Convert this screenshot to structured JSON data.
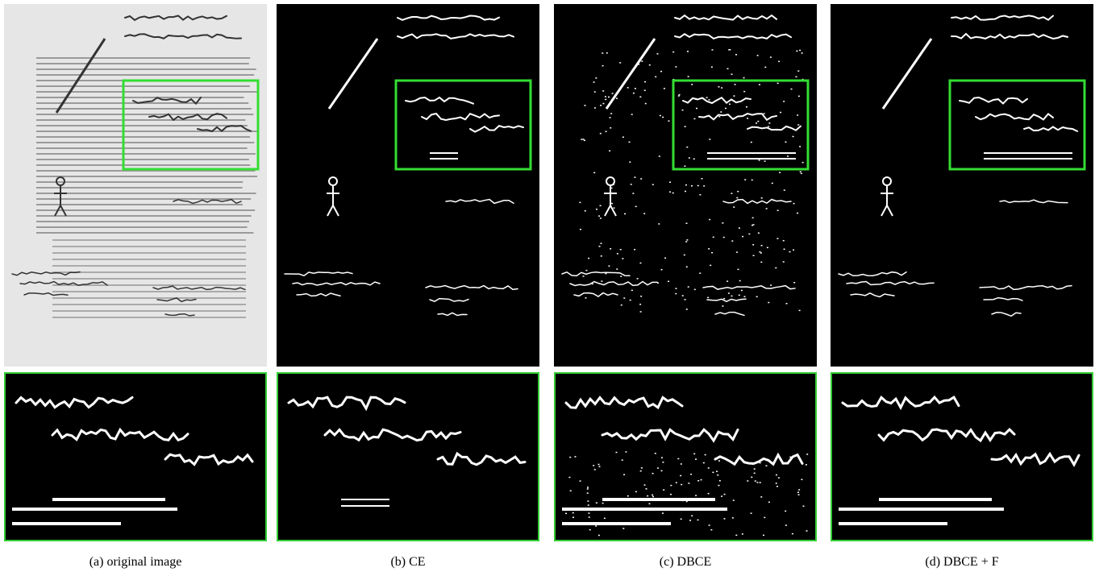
{
  "figure": {
    "captions": [
      "(a) original image",
      "(b) CE",
      "(c) DBCE",
      "(d) DBCE + F"
    ]
  }
}
